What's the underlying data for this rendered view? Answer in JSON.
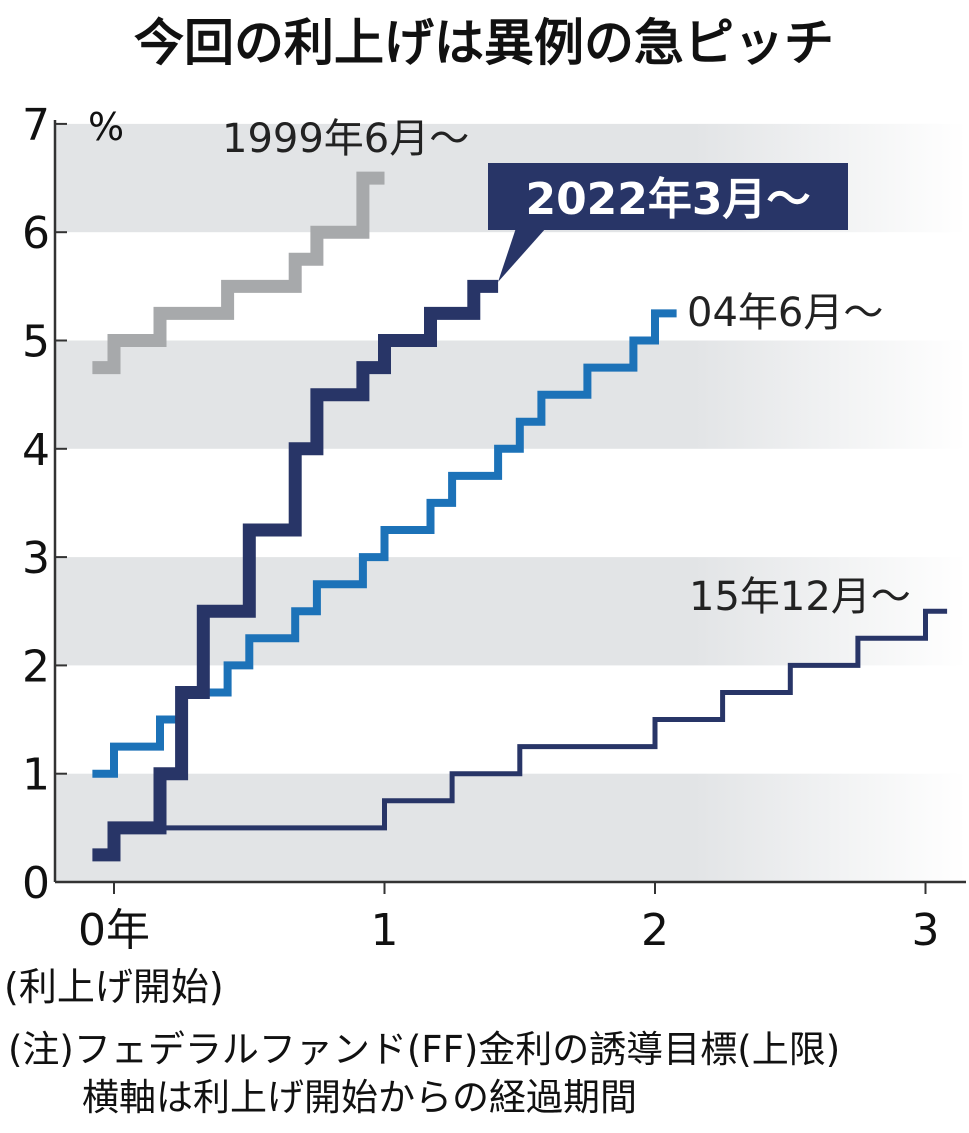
{
  "title": "今回の利上げは異例の急ピッチ",
  "chart_data": {
    "type": "line",
    "step": true,
    "title": "今回の利上げは異例の急ピッチ",
    "ylabel": "%",
    "ylim": [
      0,
      7
    ],
    "xlim": [
      -0.1,
      3.1
    ],
    "y_ticks": [
      0,
      1,
      2,
      3,
      4,
      5,
      6,
      7
    ],
    "x_ticks": [
      {
        "value": 0,
        "label": "0年"
      },
      {
        "value": 1,
        "label": "1"
      },
      {
        "value": 2,
        "label": "2"
      },
      {
        "value": 3,
        "label": "3"
      }
    ],
    "x_sublabel": "(利上げ開始)",
    "grid": "alternating horizontal bands",
    "series": [
      {
        "name": "1999年6月〜",
        "color": "#a7a9ab",
        "points": [
          [
            -0.08,
            4.75
          ],
          [
            0,
            4.75
          ],
          [
            0,
            5.0
          ],
          [
            0.17,
            5.0
          ],
          [
            0.17,
            5.25
          ],
          [
            0.42,
            5.25
          ],
          [
            0.42,
            5.5
          ],
          [
            0.67,
            5.5
          ],
          [
            0.67,
            5.75
          ],
          [
            0.75,
            5.75
          ],
          [
            0.75,
            6.0
          ],
          [
            0.92,
            6.0
          ],
          [
            0.92,
            6.5
          ],
          [
            1.0,
            6.5
          ]
        ]
      },
      {
        "name": "04年6月〜",
        "color": "#1c72b8",
        "points": [
          [
            -0.08,
            1.0
          ],
          [
            0,
            1.0
          ],
          [
            0,
            1.25
          ],
          [
            0.17,
            1.25
          ],
          [
            0.17,
            1.5
          ],
          [
            0.25,
            1.5
          ],
          [
            0.25,
            1.75
          ],
          [
            0.42,
            1.75
          ],
          [
            0.42,
            2.0
          ],
          [
            0.5,
            2.0
          ],
          [
            0.5,
            2.25
          ],
          [
            0.67,
            2.25
          ],
          [
            0.67,
            2.5
          ],
          [
            0.75,
            2.5
          ],
          [
            0.75,
            2.75
          ],
          [
            0.92,
            2.75
          ],
          [
            0.92,
            3.0
          ],
          [
            1.0,
            3.0
          ],
          [
            1.0,
            3.25
          ],
          [
            1.17,
            3.25
          ],
          [
            1.17,
            3.5
          ],
          [
            1.25,
            3.5
          ],
          [
            1.25,
            3.75
          ],
          [
            1.42,
            3.75
          ],
          [
            1.42,
            4.0
          ],
          [
            1.5,
            4.0
          ],
          [
            1.5,
            4.25
          ],
          [
            1.58,
            4.25
          ],
          [
            1.58,
            4.5
          ],
          [
            1.75,
            4.5
          ],
          [
            1.75,
            4.75
          ],
          [
            1.92,
            4.75
          ],
          [
            1.92,
            5.0
          ],
          [
            2.0,
            5.0
          ],
          [
            2.0,
            5.25
          ],
          [
            2.08,
            5.25
          ]
        ]
      },
      {
        "name": "15年12月〜",
        "color": "#283567",
        "points": [
          [
            0.17,
            0.5
          ],
          [
            1.0,
            0.5
          ],
          [
            1.0,
            0.75
          ],
          [
            1.25,
            0.75
          ],
          [
            1.25,
            1.0
          ],
          [
            1.5,
            1.0
          ],
          [
            1.5,
            1.25
          ],
          [
            2.0,
            1.25
          ],
          [
            2.0,
            1.5
          ],
          [
            2.25,
            1.5
          ],
          [
            2.25,
            1.75
          ],
          [
            2.5,
            1.75
          ],
          [
            2.5,
            2.0
          ],
          [
            2.75,
            2.0
          ],
          [
            2.75,
            2.25
          ],
          [
            3.0,
            2.25
          ],
          [
            3.0,
            2.5
          ],
          [
            3.08,
            2.5
          ]
        ]
      },
      {
        "name": "2022年3月〜",
        "color": "#283567",
        "points": [
          [
            -0.08,
            0.25
          ],
          [
            0,
            0.25
          ],
          [
            0,
            0.5
          ],
          [
            0.17,
            0.5
          ],
          [
            0.17,
            1.0
          ],
          [
            0.25,
            1.0
          ],
          [
            0.25,
            1.75
          ],
          [
            0.33,
            1.75
          ],
          [
            0.33,
            2.5
          ],
          [
            0.5,
            2.5
          ],
          [
            0.5,
            3.25
          ],
          [
            0.67,
            3.25
          ],
          [
            0.67,
            4.0
          ],
          [
            0.75,
            4.0
          ],
          [
            0.75,
            4.5
          ],
          [
            0.92,
            4.5
          ],
          [
            0.92,
            4.75
          ],
          [
            1.0,
            4.75
          ],
          [
            1.0,
            5.0
          ],
          [
            1.17,
            5.0
          ],
          [
            1.17,
            5.25
          ],
          [
            1.33,
            5.25
          ],
          [
            1.33,
            5.5
          ],
          [
            1.42,
            5.5
          ]
        ]
      }
    ],
    "notes": [
      "(注)フェデラルファンド(FF)金利の誘導目標(上限)",
      "横軸は利上げ開始からの経過期間"
    ]
  }
}
